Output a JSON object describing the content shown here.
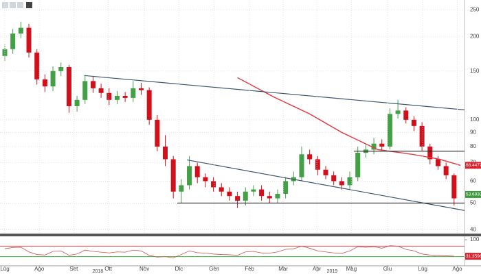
{
  "chart_data": [
    {
      "type": "candlestick",
      "log_y": true,
      "grid": true,
      "xlim": [
        -0.6,
        57.3
      ],
      "ylim": [
        39,
        271
      ],
      "yticks": [
        40,
        50,
        60,
        70,
        80,
        90,
        100,
        150,
        200,
        250
      ],
      "up_color": "#43a047",
      "down_color": "#d0101b",
      "x": [
        0,
        1,
        2,
        3,
        4,
        5,
        6,
        7,
        8,
        9,
        10,
        11,
        12,
        13,
        14,
        15,
        16,
        17,
        18,
        19,
        20,
        21,
        22,
        23,
        24,
        25,
        26,
        27,
        28,
        29,
        30,
        31,
        32,
        33,
        34,
        35,
        36,
        37,
        38,
        39,
        40,
        41,
        42,
        43,
        44,
        45,
        46,
        47,
        48,
        49,
        50,
        51,
        52,
        53,
        54,
        55,
        56
      ],
      "open": [
        170,
        180,
        205,
        215,
        175,
        140,
        132,
        150,
        155,
        112,
        118,
        138,
        130,
        125,
        118,
        122,
        120,
        130,
        128,
        100,
        80,
        72,
        55,
        58,
        68,
        62,
        60,
        57,
        55,
        53,
        51,
        55,
        56,
        53,
        52,
        54,
        60,
        62,
        75,
        72,
        66,
        63,
        60,
        58,
        62,
        76,
        78,
        82,
        80,
        105,
        108,
        100,
        95,
        80,
        72,
        68,
        63
      ],
      "high": [
        187,
        213,
        226,
        222,
        180,
        146,
        156,
        161,
        158,
        122,
        145,
        143,
        135,
        130,
        127,
        126,
        138,
        136,
        131,
        104,
        88,
        74,
        61,
        74,
        70,
        64,
        62,
        59,
        57,
        55,
        57,
        58,
        58,
        55,
        56,
        62,
        65,
        80,
        78,
        74,
        68,
        65,
        62,
        65,
        80,
        82,
        86,
        85,
        110,
        118,
        111,
        103,
        98,
        82,
        74,
        70,
        64
      ],
      "low": [
        163,
        173,
        197,
        168,
        134,
        126,
        127,
        144,
        106,
        107,
        114,
        125,
        120,
        113,
        114,
        116,
        116,
        123,
        96,
        77,
        68,
        52,
        50,
        56,
        59,
        57,
        55,
        53,
        51,
        48,
        49,
        53,
        51,
        50,
        50,
        52,
        58,
        60,
        69,
        63,
        61,
        58,
        56,
        56,
        60,
        73,
        75,
        77,
        78,
        101,
        97,
        91,
        77,
        69,
        66,
        61,
        49
      ],
      "close": [
        180,
        205,
        215,
        175,
        140,
        132,
        150,
        155,
        112,
        118,
        138,
        130,
        125,
        118,
        122,
        120,
        130,
        128,
        100,
        80,
        72,
        55,
        58,
        68,
        62,
        60,
        57,
        55,
        53,
        51,
        55,
        56,
        53,
        52,
        54,
        60,
        62,
        75,
        72,
        66,
        63,
        60,
        58,
        62,
        76,
        78,
        82,
        80,
        105,
        108,
        100,
        95,
        80,
        72,
        68,
        63,
        52
      ],
      "moving_average": {
        "color": "#e0404a",
        "x": [
          29,
          33.5,
          38,
          42,
          46.5,
          50.8,
          54.2,
          56.8
        ],
        "values": [
          142,
          121,
          105,
          90,
          78,
          75,
          72,
          68.4477
        ]
      },
      "trend_lines": [
        {
          "color": "#3b5670",
          "x": [
            9.9,
            57.3
          ],
          "values": [
            144.5,
            108.6
          ]
        },
        {
          "color": "#3b5670",
          "x": [
            22.7,
            57.3
          ],
          "values": [
            71.6,
            47
          ]
        },
        {
          "color": "#222222",
          "x": [
            21.5,
            57.3
          ],
          "values": [
            50,
            50
          ]
        },
        {
          "color": "#222222",
          "x": [
            43.5,
            57.3
          ],
          "values": [
            77,
            77
          ]
        }
      ],
      "price_labels": [
        {
          "value": 68.4477,
          "label": "68.4477",
          "color": "#d9232e"
        },
        {
          "value": 53.693,
          "label": "53.6930",
          "color": "#3c9a3c"
        }
      ]
    },
    {
      "type": "line",
      "color": "#d05050",
      "xlim": [
        -0.6,
        57.3
      ],
      "ylim": [
        0,
        100
      ],
      "yticks": [
        100
      ],
      "levels": [
        {
          "value": 70,
          "color": "#e05050"
        },
        {
          "value": 30,
          "color": "#3cb043"
        }
      ],
      "x": [
        0,
        1,
        2,
        3,
        4,
        5,
        6,
        7,
        8,
        9,
        10,
        11,
        12,
        13,
        14,
        15,
        16,
        17,
        18,
        19,
        20,
        21,
        22,
        23,
        24,
        25,
        26,
        27,
        28,
        29,
        30,
        31,
        32,
        33,
        34,
        35,
        36,
        37,
        38,
        39,
        40,
        41,
        42,
        43,
        44,
        45,
        46,
        47,
        48,
        49,
        50,
        51,
        52,
        53,
        54,
        55,
        56
      ],
      "values": [
        60,
        65,
        66,
        48,
        38,
        36,
        50,
        52,
        35,
        40,
        55,
        50,
        47,
        44,
        48,
        47,
        55,
        52,
        35,
        28,
        30,
        25,
        38,
        52,
        45,
        43,
        40,
        38,
        37,
        35,
        48,
        50,
        44,
        43,
        48,
        58,
        60,
        70,
        62,
        52,
        48,
        44,
        42,
        52,
        68,
        66,
        68,
        62,
        72,
        70,
        58,
        52,
        40,
        36,
        35,
        33,
        31.3596
      ],
      "value_labels": {
        "56": "31.3596"
      },
      "xticks": [
        {
          "value": 0,
          "label": "Lug"
        },
        {
          "value": 4.3,
          "label": "Ago"
        },
        {
          "value": 8.6,
          "label": "Set"
        },
        {
          "value": 12.9,
          "label": "Ott"
        },
        {
          "value": 17.4,
          "label": "Nov"
        },
        {
          "value": 21.7,
          "label": "Dic"
        },
        {
          "value": 26.1,
          "label": "Gen"
        },
        {
          "value": 30.5,
          "label": "Feb"
        },
        {
          "value": 34.7,
          "label": "Mar"
        },
        {
          "value": 38.9,
          "label": "Apr"
        },
        {
          "value": 43.2,
          "label": "Mag"
        },
        {
          "value": 47.7,
          "label": "Giu"
        },
        {
          "value": 52.1,
          "label": "Lug"
        },
        {
          "value": 56.4,
          "label": "Ago"
        }
      ],
      "year_labels": [
        {
          "value": 11.6,
          "label": "2018"
        },
        {
          "value": 40.8,
          "label": "2019"
        }
      ]
    }
  ]
}
